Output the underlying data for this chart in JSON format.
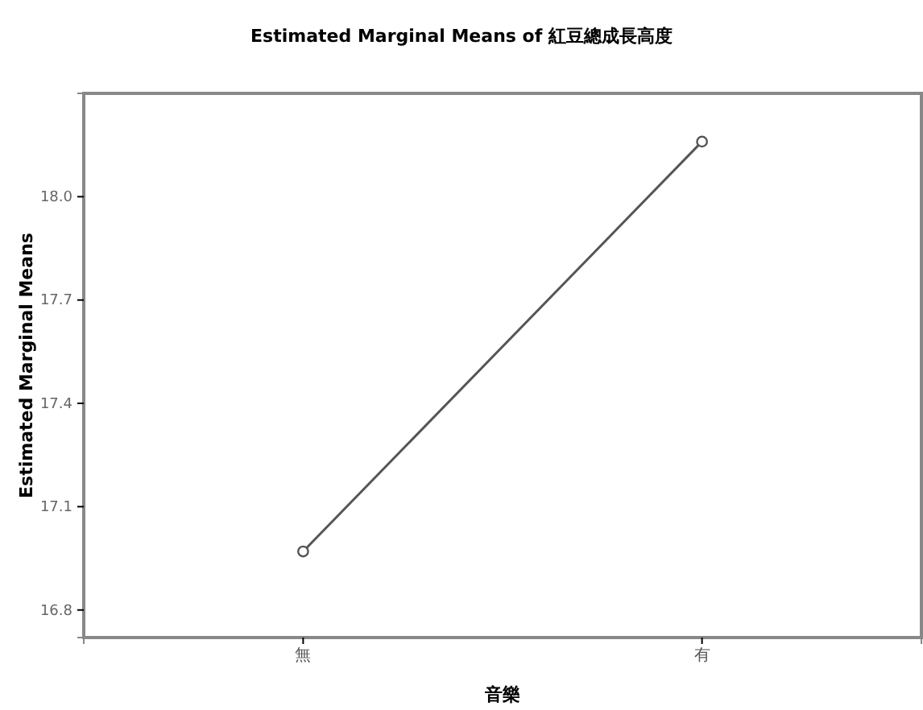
{
  "chart_data": {
    "type": "line",
    "title": "Estimated Marginal Means of 紅豆總成長高度",
    "xlabel": "音樂",
    "ylabel": "Estimated Marginal Means",
    "categories": [
      "無",
      "有"
    ],
    "series": [
      {
        "color": "#555555",
        "values": [
          16.97,
          18.16
        ]
      }
    ],
    "ylim": [
      16.72,
      18.3
    ],
    "yticks": [
      {
        "value": 16.8,
        "label": "16.8"
      },
      {
        "value": 17.1,
        "label": "17.1"
      },
      {
        "value": 17.4,
        "label": "17.4"
      },
      {
        "value": 17.7,
        "label": "17.7"
      },
      {
        "value": 18.0,
        "label": "18.0"
      }
    ],
    "marker": "circle",
    "line_style": "solid"
  }
}
